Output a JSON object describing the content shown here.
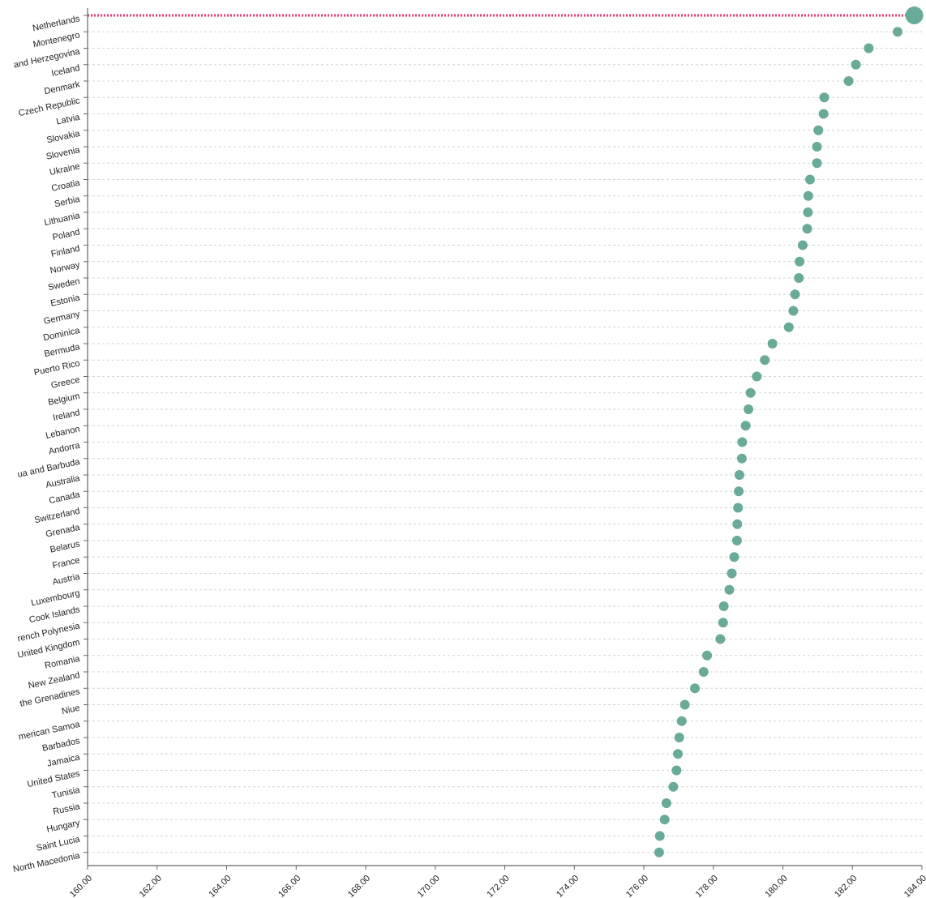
{
  "chart_data": {
    "type": "scatter",
    "title": "",
    "xlabel": "",
    "ylabel": "",
    "xlim": [
      160,
      184
    ],
    "x_ticks": [
      "160.00",
      "162.00",
      "164.00",
      "166.00",
      "168.00",
      "170.00",
      "172.00",
      "174.00",
      "176.00",
      "178.00",
      "180.00",
      "182.00",
      "184.00"
    ],
    "grid": "horizontal dashed",
    "colors": {
      "point": "#6aaa98",
      "highlight_line": "#e8457a",
      "axis": "#666666"
    },
    "highlight": {
      "category": "Netherlands",
      "style": "dotted pink line to axis, enlarged marker"
    },
    "points": [
      {
        "label": "Netherlands",
        "value": 183.78
      },
      {
        "label": "Montenegro",
        "value": 183.3
      },
      {
        "label": "and Herzegovina",
        "value": 182.47
      },
      {
        "label": "Iceland",
        "value": 182.1
      },
      {
        "label": "Denmark",
        "value": 181.89
      },
      {
        "label": "Czech Republic",
        "value": 181.19
      },
      {
        "label": "Latvia",
        "value": 181.17
      },
      {
        "label": "Slovakia",
        "value": 181.02
      },
      {
        "label": "Slovenia",
        "value": 180.98
      },
      {
        "label": "Ukraine",
        "value": 180.98
      },
      {
        "label": "Croatia",
        "value": 180.78
      },
      {
        "label": "Serbia",
        "value": 180.73
      },
      {
        "label": "Lithuania",
        "value": 180.72
      },
      {
        "label": "Poland",
        "value": 180.7
      },
      {
        "label": "Finland",
        "value": 180.57
      },
      {
        "label": "Norway",
        "value": 180.48
      },
      {
        "label": "Sweden",
        "value": 180.46
      },
      {
        "label": "Estonia",
        "value": 180.35
      },
      {
        "label": "Germany",
        "value": 180.3
      },
      {
        "label": "Dominica",
        "value": 180.17
      },
      {
        "label": "Bermuda",
        "value": 179.7
      },
      {
        "label": "Puerto Rico",
        "value": 179.48
      },
      {
        "label": "Greece",
        "value": 179.25
      },
      {
        "label": "Belgium",
        "value": 179.07
      },
      {
        "label": "Ireland",
        "value": 179.01
      },
      {
        "label": "Lebanon",
        "value": 178.93
      },
      {
        "label": "Andorra",
        "value": 178.83
      },
      {
        "label": "ua and Barbuda",
        "value": 178.82
      },
      {
        "label": "Australia",
        "value": 178.75
      },
      {
        "label": "Canada",
        "value": 178.73
      },
      {
        "label": "Switzerland",
        "value": 178.71
      },
      {
        "label": "Grenada",
        "value": 178.69
      },
      {
        "label": "Belarus",
        "value": 178.68
      },
      {
        "label": "France",
        "value": 178.6
      },
      {
        "label": "Austria",
        "value": 178.53
      },
      {
        "label": "Luxembourg",
        "value": 178.46
      },
      {
        "label": "Cook Islands",
        "value": 178.3
      },
      {
        "label": "rench Polynesia",
        "value": 178.28
      },
      {
        "label": "United Kingdom",
        "value": 178.2
      },
      {
        "label": "Romania",
        "value": 177.82
      },
      {
        "label": "New Zealand",
        "value": 177.72
      },
      {
        "label": "the Grenadines",
        "value": 177.47
      },
      {
        "label": "Niue",
        "value": 177.18
      },
      {
        "label": "merican Samoa",
        "value": 177.09
      },
      {
        "label": "Barbados",
        "value": 177.02
      },
      {
        "label": "Jamaica",
        "value": 176.98
      },
      {
        "label": "United States",
        "value": 176.94
      },
      {
        "label": "Tunisia",
        "value": 176.85
      },
      {
        "label": "Russia",
        "value": 176.65
      },
      {
        "label": "Hungary",
        "value": 176.6
      },
      {
        "label": "Saint Lucia",
        "value": 176.46
      },
      {
        "label": "North Macedonia",
        "value": 176.44
      }
    ]
  }
}
